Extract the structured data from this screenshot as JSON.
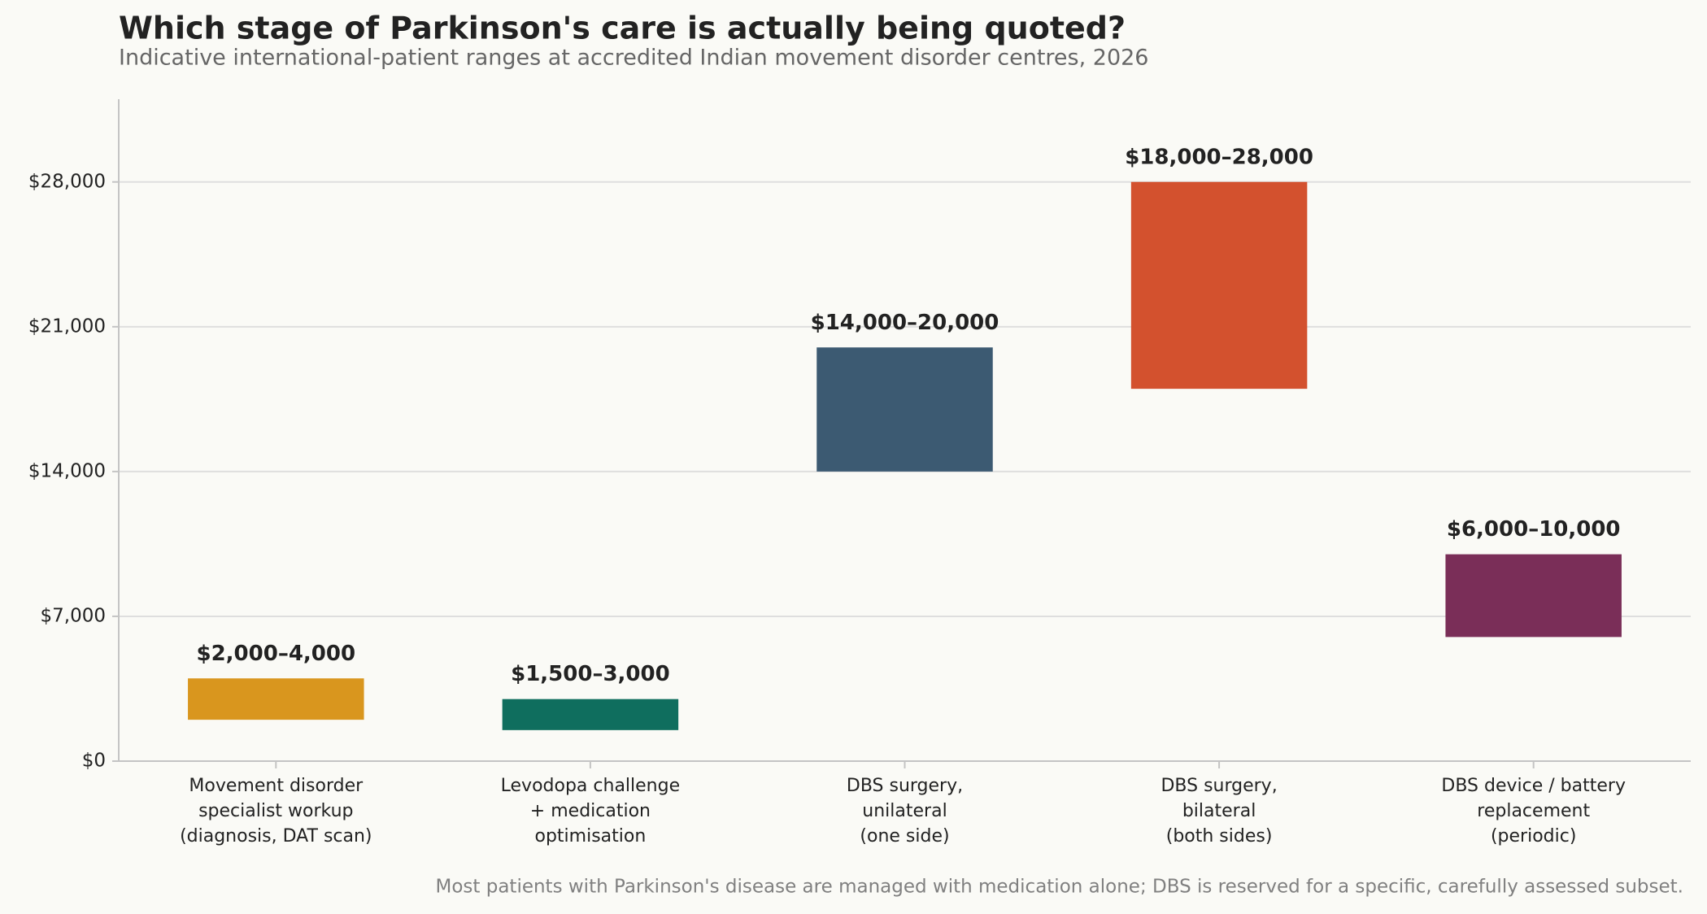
{
  "chart_data": {
    "type": "range-bar",
    "title": "Which stage of Parkinson's care is actually being quoted?",
    "subtitle": "Indicative international-patient ranges at accredited Indian movement disorder centres, 2026",
    "note": "Most patients with Parkinson's disease are managed with medication alone; DBS is reserved for a specific, carefully assessed subset.",
    "categories": [
      "Movement disorder\nspecialist workup\n(diagnosis, DAT scan)",
      "Levodopa challenge\n+ medication\noptimisation",
      "DBS surgery,\nunilateral\n(one side)",
      "DBS surgery,\nbilateral\n(both sides)",
      "DBS device / battery\nreplacement\n(periodic)"
    ],
    "low": [
      2000,
      1500,
      14000,
      18000,
      6000
    ],
    "high": [
      4000,
      3000,
      20000,
      28000,
      10000
    ],
    "value_labels": [
      "$2,000–4,000",
      "$1,500–3,000",
      "$14,000–20,000",
      "$18,000–28,000",
      "$6,000–10,000"
    ],
    "colors": [
      "#D9961E",
      "#0F6E5E",
      "#3C5A72",
      "#D3512E",
      "#7A2E58"
    ],
    "ylim": [
      0,
      32000
    ],
    "yticks": [
      {
        "value": 0,
        "label": "$0"
      },
      {
        "value": 7000,
        "label": "$7,000"
      },
      {
        "value": 14000,
        "label": "$14,000"
      },
      {
        "value": 21000,
        "label": "$21,000"
      },
      {
        "value": 28000,
        "label": "$28,000"
      }
    ],
    "grid": true
  }
}
